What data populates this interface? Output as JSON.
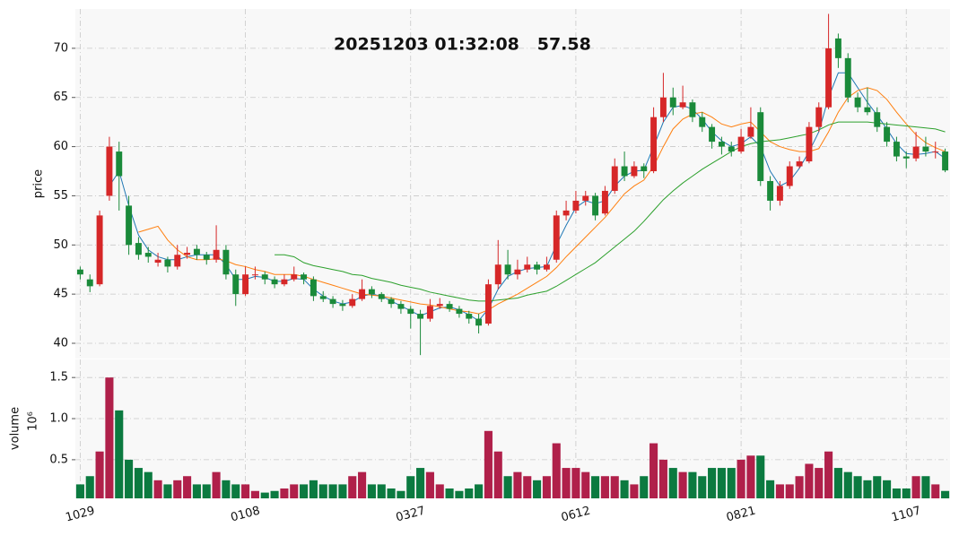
{
  "chart_data": [
    {
      "type": "candlestick",
      "title": "20251203 01:32:08   57.58",
      "ylabel": "price",
      "up_color": "#d62728",
      "down_color": "#1a8a3a",
      "ylim": [
        38.45,
        74.0
      ],
      "yticks": [
        40,
        45,
        50,
        55,
        60,
        65,
        70
      ],
      "grid": true,
      "ohlc": [
        [
          47.5,
          47.8,
          46.5,
          47
        ],
        [
          46.5,
          47,
          45.2,
          45.8
        ],
        [
          46,
          53.5,
          45.8,
          53
        ],
        [
          55,
          61,
          54.5,
          60
        ],
        [
          59.5,
          60.5,
          53.5,
          57
        ],
        [
          54,
          55,
          49,
          50
        ],
        [
          50.2,
          50.8,
          48.5,
          49
        ],
        [
          49.2,
          49.8,
          48.2,
          48.8
        ],
        [
          48.2,
          49.2,
          47.8,
          48.5
        ],
        [
          48.5,
          48.8,
          47.2,
          47.8
        ],
        [
          47.8,
          50,
          47.5,
          49
        ],
        [
          49,
          49.8,
          48.6,
          49.2
        ],
        [
          49.6,
          50,
          48.5,
          49
        ],
        [
          49,
          49.3,
          48,
          48.5
        ],
        [
          48.5,
          52,
          48.2,
          49.5
        ],
        [
          49.5,
          50,
          46.5,
          47
        ],
        [
          47,
          47.5,
          43.8,
          45
        ],
        [
          45,
          47.8,
          44.8,
          47
        ],
        [
          47,
          47.8,
          46.5,
          47
        ],
        [
          47,
          47.3,
          46,
          46.5
        ],
        [
          46.5,
          46.8,
          45.6,
          46
        ],
        [
          46,
          47,
          45.8,
          46.5
        ],
        [
          46.5,
          47.8,
          46.3,
          47
        ],
        [
          47,
          47.2,
          46,
          46.5
        ],
        [
          46.5,
          46.8,
          44.3,
          44.8
        ],
        [
          44.8,
          45.3,
          44.2,
          44.5
        ],
        [
          44.5,
          44.8,
          43.6,
          44
        ],
        [
          44,
          44.4,
          43.3,
          43.8
        ],
        [
          43.8,
          45,
          43.6,
          44.5
        ],
        [
          44.5,
          46.5,
          44.3,
          45.5
        ],
        [
          45.5,
          45.8,
          44.6,
          45
        ],
        [
          45,
          45.2,
          44.2,
          44.5
        ],
        [
          44.5,
          44.7,
          43.6,
          44
        ],
        [
          44,
          44.3,
          43,
          43.5
        ],
        [
          43.5,
          43.8,
          41.5,
          43
        ],
        [
          43,
          43.4,
          38.8,
          42.5
        ],
        [
          42.5,
          44.5,
          42.2,
          43.8
        ],
        [
          43.8,
          44.6,
          43.5,
          44
        ],
        [
          44,
          44.3,
          43.2,
          43.5
        ],
        [
          43.5,
          43.8,
          42.6,
          43
        ],
        [
          43,
          43.3,
          42,
          42.5
        ],
        [
          42.5,
          43,
          41,
          41.8
        ],
        [
          42,
          46.5,
          41.8,
          46
        ],
        [
          46,
          50.5,
          45.5,
          48
        ],
        [
          48,
          49.5,
          46.5,
          47
        ],
        [
          47,
          48.5,
          46.5,
          47.5
        ],
        [
          47.5,
          48.8,
          47.2,
          48
        ],
        [
          48,
          48.3,
          47,
          47.5
        ],
        [
          47.5,
          48.8,
          47.3,
          48
        ],
        [
          48.5,
          53.5,
          48.2,
          53
        ],
        [
          53,
          54.5,
          52.5,
          53.5
        ],
        [
          53.5,
          55.5,
          53.2,
          54.5
        ],
        [
          54.5,
          55.5,
          54,
          55
        ],
        [
          55,
          55.3,
          52.5,
          53
        ],
        [
          53.2,
          56,
          53,
          55.5
        ],
        [
          55.5,
          58.8,
          55.2,
          58
        ],
        [
          58,
          59.5,
          56.5,
          57
        ],
        [
          57,
          58.5,
          56.8,
          58
        ],
        [
          58,
          58.3,
          56.8,
          57.5
        ],
        [
          57.5,
          64,
          57.3,
          63
        ],
        [
          63,
          67.5,
          62.5,
          65
        ],
        [
          65,
          66,
          63.2,
          64
        ],
        [
          64,
          66.2,
          63.8,
          64.5
        ],
        [
          64.5,
          64.8,
          62.5,
          63
        ],
        [
          63,
          63.5,
          61.5,
          62
        ],
        [
          62,
          62.3,
          59.8,
          60.5
        ],
        [
          60.5,
          61,
          59.2,
          60
        ],
        [
          60,
          60.5,
          59,
          59.5
        ],
        [
          59.5,
          61.8,
          59.3,
          61
        ],
        [
          61,
          64,
          60.8,
          62
        ],
        [
          63.5,
          64,
          56,
          56.5
        ],
        [
          56.5,
          57,
          53.5,
          54.5
        ],
        [
          54.5,
          56.5,
          54,
          56
        ],
        [
          56,
          58.5,
          55.7,
          58
        ],
        [
          58,
          59,
          57.8,
          58.5
        ],
        [
          58.5,
          62.5,
          58.3,
          62
        ],
        [
          62,
          64.5,
          61.5,
          64
        ],
        [
          64,
          73.5,
          63.8,
          70
        ],
        [
          71,
          71.5,
          68,
          69
        ],
        [
          69,
          69.5,
          64.5,
          65
        ],
        [
          65,
          65.5,
          63.5,
          64
        ],
        [
          64,
          66,
          63.2,
          63.5
        ],
        [
          63.5,
          64,
          61.5,
          62
        ],
        [
          62,
          62.5,
          60,
          60.5
        ],
        [
          60.5,
          61,
          58.5,
          59
        ],
        [
          59,
          59.5,
          57.8,
          58.8
        ],
        [
          58.8,
          61.5,
          58.5,
          60
        ],
        [
          60,
          61,
          59,
          59.5
        ],
        [
          59.5,
          60.5,
          58.8,
          59.5
        ],
        [
          59.5,
          59.8,
          57.4,
          57.58
        ]
      ],
      "lines": [
        {
          "color": "#1f77b4",
          "values": [
            null,
            null,
            null,
            56,
            57.5,
            54,
            51,
            49.5,
            48.8,
            48.5,
            48.5,
            48.8,
            49,
            49,
            49,
            48,
            46.5,
            46.5,
            46.8,
            46.7,
            46.3,
            46.3,
            46.6,
            46.5,
            45.5,
            44.8,
            44.3,
            44,
            44.2,
            44.8,
            45,
            44.8,
            44.3,
            43.8,
            43.3,
            42.8,
            43.2,
            43.6,
            43.7,
            43.4,
            42.9,
            42.3,
            43.5,
            45.5,
            46.8,
            47.3,
            47.6,
            47.7,
            47.8,
            50,
            52,
            53.8,
            54.5,
            54.2,
            54.5,
            56,
            57,
            57.5,
            57.6,
            60,
            62.5,
            64,
            64.2,
            63.8,
            62.8,
            61.5,
            60.6,
            60,
            60.3,
            61,
            60,
            57.5,
            56,
            56.5,
            57.8,
            59.5,
            61.5,
            65,
            67.5,
            67.5,
            66,
            64.5,
            63.2,
            61.8,
            60.3,
            59.3,
            59.2,
            59.3,
            59.5,
            58.8
          ]
        },
        {
          "color": "#ff7f0e",
          "values": [
            null,
            null,
            null,
            null,
            null,
            null,
            51.3,
            51.6,
            51.9,
            50.5,
            49.5,
            48.8,
            48.5,
            48.5,
            48.6,
            48.4,
            48,
            47.8,
            47.5,
            47.3,
            47,
            47,
            47,
            46.8,
            46.5,
            46.2,
            45.9,
            45.6,
            45.3,
            45,
            44.9,
            44.8,
            44.6,
            44.4,
            44.2,
            44,
            43.9,
            43.7,
            43.5,
            43.3,
            43.2,
            43,
            43.4,
            44,
            44.5,
            45,
            45.6,
            46.2,
            46.8,
            47.7,
            48.8,
            49.8,
            50.8,
            51.8,
            52.8,
            54,
            55.2,
            56,
            56.6,
            58,
            60,
            61.8,
            62.8,
            63.3,
            63.5,
            63,
            62.3,
            62,
            62.3,
            62.5,
            61.5,
            60.5,
            60,
            59.7,
            59.5,
            59.5,
            59.8,
            61.5,
            63.5,
            65,
            65.7,
            66,
            65.7,
            64.8,
            63.5,
            62.3,
            61.2,
            60.4,
            59.9,
            59.5
          ]
        },
        {
          "color": "#2ca02c",
          "values": [
            null,
            null,
            null,
            null,
            null,
            null,
            null,
            null,
            null,
            null,
            null,
            null,
            null,
            null,
            null,
            null,
            null,
            null,
            null,
            null,
            49,
            49,
            48.8,
            48.2,
            47.9,
            47.7,
            47.5,
            47.3,
            47,
            46.9,
            46.6,
            46.4,
            46.2,
            45.9,
            45.7,
            45.5,
            45.2,
            45,
            44.8,
            44.6,
            44.4,
            44.3,
            44.3,
            44.4,
            44.5,
            44.6,
            44.9,
            45.1,
            45.3,
            45.8,
            46.4,
            47,
            47.6,
            48.2,
            49,
            49.8,
            50.6,
            51.4,
            52.4,
            53.5,
            54.6,
            55.5,
            56.3,
            57,
            57.7,
            58.3,
            58.9,
            59.5,
            60,
            60.3,
            60.5,
            60.6,
            60.7,
            60.9,
            61.1,
            61.3,
            61.7,
            62.2,
            62.5,
            62.5,
            62.5,
            62.5,
            62.4,
            62.3,
            62.2,
            62.1,
            62,
            61.9,
            61.8,
            61.5
          ]
        }
      ]
    },
    {
      "type": "bar",
      "ylabel": "volume",
      "unit_label": "10⁶",
      "up_color": "#b0204a",
      "down_color": "#0b7a40",
      "ylim": [
        0.03,
        1.72
      ],
      "yticks": [
        0.5,
        {
          "value": 1.0,
          "label": "1.0"
        },
        1.5
      ],
      "grid": true,
      "categories": [
        "1029",
        null,
        null,
        null,
        null,
        null,
        null,
        null,
        null,
        null,
        null,
        null,
        null,
        null,
        null,
        null,
        null,
        "0108",
        null,
        null,
        null,
        null,
        null,
        null,
        null,
        null,
        null,
        null,
        null,
        null,
        null,
        null,
        null,
        null,
        "0327",
        null,
        null,
        null,
        null,
        null,
        null,
        null,
        null,
        null,
        null,
        null,
        null,
        null,
        null,
        null,
        null,
        "0612",
        null,
        null,
        null,
        null,
        null,
        null,
        null,
        null,
        null,
        null,
        null,
        null,
        null,
        null,
        null,
        null,
        "0821",
        null,
        null,
        null,
        null,
        null,
        null,
        null,
        null,
        null,
        null,
        null,
        null,
        null,
        null,
        null,
        null,
        "1107",
        null,
        null,
        null,
        null
      ],
      "values": [
        0.2,
        0.3,
        0.6,
        1.5,
        1.1,
        0.5,
        0.4,
        0.35,
        0.25,
        0.2,
        0.25,
        0.3,
        0.2,
        0.2,
        0.35,
        0.25,
        0.2,
        0.2,
        0.12,
        0.1,
        0.12,
        0.15,
        0.2,
        0.2,
        0.25,
        0.2,
        0.2,
        0.2,
        0.3,
        0.35,
        0.2,
        0.2,
        0.15,
        0.12,
        0.3,
        0.4,
        0.35,
        0.2,
        0.15,
        0.12,
        0.15,
        0.2,
        0.85,
        0.6,
        0.3,
        0.35,
        0.3,
        0.25,
        0.3,
        0.7,
        0.4,
        0.4,
        0.35,
        0.3,
        0.3,
        0.3,
        0.25,
        0.2,
        0.3,
        0.7,
        0.5,
        0.4,
        0.35,
        0.35,
        0.3,
        0.4,
        0.4,
        0.4,
        0.5,
        0.55,
        0.55,
        0.25,
        0.2,
        0.2,
        0.3,
        0.45,
        0.4,
        0.6,
        0.4,
        0.35,
        0.3,
        0.25,
        0.3,
        0.25,
        0.15,
        0.15,
        0.3,
        0.3,
        0.2,
        0.12
      ]
    }
  ]
}
